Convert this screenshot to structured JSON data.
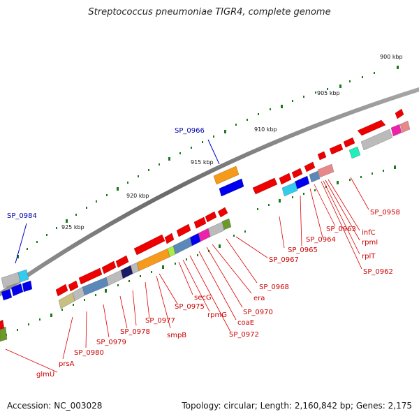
{
  "title": "Streptococcus pneumoniae TIGR4, complete genome",
  "footer": {
    "accession": "Accession: NC_003028",
    "summary": "Topology: circular; Length: 2,160,842 bp; Genes: 2,175"
  },
  "ticks": [
    "900 kbp",
    "905 kbp",
    "910 kbp",
    "915 kbp",
    "920 kbp",
    "925 kbp"
  ],
  "highlight_labels": [
    "SP_0966",
    "SP_0984"
  ],
  "gene_labels": [
    "SP_0958",
    "infC",
    "rpmI",
    "rplT",
    "SP_0962",
    "SP_0963",
    "SP_0964",
    "SP_0965",
    "SP_0967",
    "SP_0968",
    "era",
    "SP_0970",
    "coaE",
    "SP_0972",
    "rpmG",
    "secG",
    "SP_0975",
    "smpB",
    "SP_0977",
    "SP_0978",
    "SP_0979",
    "SP_0980",
    "prsA",
    "glmU"
  ],
  "colors": {
    "backbone": "#7a7a7a",
    "tick": "#1a7a1a",
    "gene": "#ee0000",
    "label_line": "#dd0000",
    "highlight_line": "#0000cc",
    "orange": "#f59a1a",
    "blue": "#0000ee",
    "cyan": "#33ccee",
    "gray": "#bbbbbb",
    "steel": "#5a88b8",
    "navy": "#1a1a66",
    "magenta": "#ee22aa",
    "teal": "#22eebb",
    "olive": "#6a9a2a",
    "khaki": "#c8c080"
  }
}
